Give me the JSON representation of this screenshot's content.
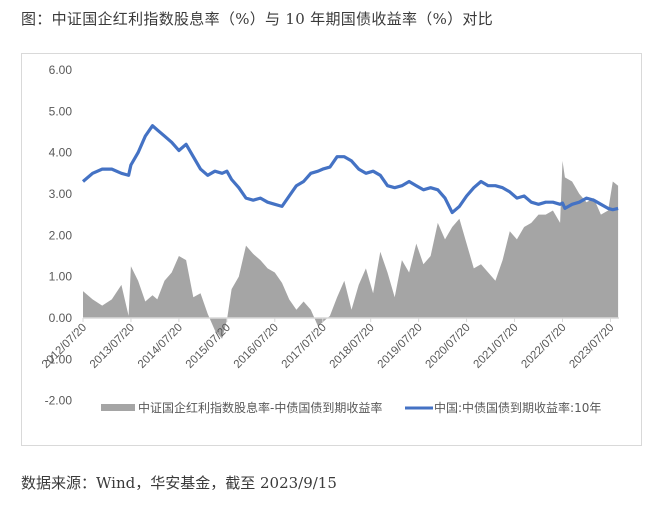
{
  "figure": {
    "title": "图：中证国企红利指数股息率（%）与 10 年期国债收益率（%）对比",
    "source": "数据来源：Wind，华安基金，截至 2023/9/15"
  },
  "colors": {
    "spread_area": "#a5a5a5",
    "yield_line": "#4472c4",
    "axis": "#d9d9d9",
    "frame": "#d9d9d9",
    "tick_text": "#595959"
  },
  "chart_data": {
    "type": "area+line",
    "title": "中证国企红利指数股息率（%）与 10 年期国债收益率（%）对比",
    "xlabel": "",
    "ylabel": "",
    "ylim": [
      -2.0,
      6.0
    ],
    "yticks": [
      "6.00",
      "5.00",
      "4.00",
      "3.00",
      "2.00",
      "1.00",
      "0.00",
      "-1.00",
      "-2.00"
    ],
    "ytick_values": [
      6,
      5,
      4,
      3,
      2,
      1,
      0,
      -1,
      -2
    ],
    "xticks": [
      "2012/07/20",
      "2013/07/20",
      "2014/07/20",
      "2015/07/20",
      "2016/07/20",
      "2017/07/20",
      "2018/07/20",
      "2019/07/20",
      "2020/07/20",
      "2021/07/20",
      "2022/07/20",
      "2023/07/20"
    ],
    "x_start": "2012/07/20",
    "x_end": "2023/09/15",
    "grid": false,
    "legend_position": "bottom",
    "legend": [
      "中证国企红利指数股息率-中债国债到期收益率",
      "中国:中债国债到期收益率:10年"
    ],
    "x": [
      2012.55,
      2012.75,
      2012.95,
      2013.15,
      2013.35,
      2013.5,
      2013.55,
      2013.7,
      2013.85,
      2014.0,
      2014.1,
      2014.25,
      2014.4,
      2014.55,
      2014.7,
      2014.85,
      2015.0,
      2015.15,
      2015.3,
      2015.45,
      2015.55,
      2015.65,
      2015.8,
      2015.95,
      2016.1,
      2016.25,
      2016.4,
      2016.55,
      2016.7,
      2016.85,
      2017.0,
      2017.15,
      2017.3,
      2017.45,
      2017.55,
      2017.7,
      2017.85,
      2018.0,
      2018.15,
      2018.3,
      2018.45,
      2018.6,
      2018.75,
      2018.9,
      2019.05,
      2019.2,
      2019.35,
      2019.5,
      2019.65,
      2019.8,
      2019.95,
      2020.1,
      2020.25,
      2020.4,
      2020.55,
      2020.7,
      2020.85,
      2021.0,
      2021.15,
      2021.3,
      2021.45,
      2021.6,
      2021.75,
      2021.9,
      2022.05,
      2022.2,
      2022.35,
      2022.5,
      2022.55,
      2022.6,
      2022.75,
      2022.9,
      2023.05,
      2023.2,
      2023.35,
      2023.5,
      2023.6,
      2023.71
    ],
    "series": [
      {
        "name": "中证国企红利指数股息率-中债国债到期收益率",
        "type": "area",
        "values": [
          0.65,
          0.45,
          0.3,
          0.45,
          0.8,
          0.05,
          1.25,
          0.9,
          0.4,
          0.55,
          0.45,
          0.9,
          1.1,
          1.5,
          1.4,
          0.5,
          0.6,
          0.1,
          -0.3,
          -0.5,
          -0.05,
          0.7,
          1.0,
          1.75,
          1.55,
          1.4,
          1.2,
          1.1,
          0.85,
          0.45,
          0.2,
          0.4,
          0.2,
          -0.2,
          -0.1,
          0.05,
          0.5,
          0.9,
          0.2,
          0.8,
          1.2,
          0.6,
          1.6,
          1.1,
          0.5,
          1.4,
          1.1,
          1.8,
          1.3,
          1.5,
          2.3,
          1.9,
          2.2,
          2.4,
          1.8,
          1.2,
          1.3,
          1.1,
          0.9,
          1.4,
          2.1,
          1.9,
          2.2,
          2.3,
          2.5,
          2.5,
          2.6,
          2.3,
          3.8,
          3.4,
          3.3,
          3.0,
          2.8,
          2.9,
          2.5,
          2.6,
          3.3,
          3.2
        ]
      },
      {
        "name": "中国:中债国债到期收益率:10年",
        "type": "line",
        "values": [
          3.3,
          3.5,
          3.6,
          3.6,
          3.5,
          3.45,
          3.7,
          4.0,
          4.4,
          4.65,
          4.55,
          4.4,
          4.25,
          4.05,
          4.2,
          3.9,
          3.6,
          3.45,
          3.55,
          3.5,
          3.55,
          3.35,
          3.15,
          2.9,
          2.85,
          2.9,
          2.8,
          2.75,
          2.7,
          2.95,
          3.2,
          3.3,
          3.5,
          3.55,
          3.6,
          3.65,
          3.9,
          3.9,
          3.8,
          3.6,
          3.5,
          3.55,
          3.45,
          3.2,
          3.15,
          3.2,
          3.3,
          3.2,
          3.1,
          3.15,
          3.1,
          2.9,
          2.55,
          2.7,
          2.95,
          3.15,
          3.3,
          3.2,
          3.2,
          3.15,
          3.05,
          2.9,
          2.95,
          2.8,
          2.75,
          2.8,
          2.8,
          2.75,
          2.78,
          2.65,
          2.75,
          2.8,
          2.9,
          2.85,
          2.75,
          2.65,
          2.62,
          2.65
        ]
      }
    ]
  },
  "legend": {
    "area_label": "中证国企红利指数股息率-中债国债到期收益率",
    "line_label": "中国:中债国债到期收益率:10年"
  }
}
